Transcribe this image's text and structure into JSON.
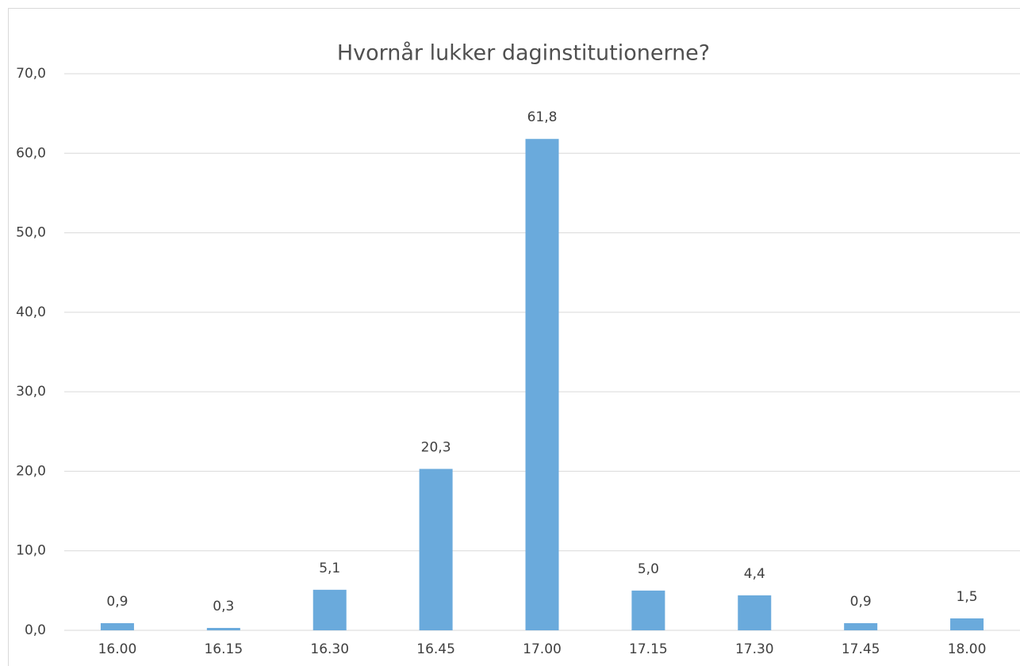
{
  "chart_data": {
    "type": "bar",
    "title": "Hvornår lukker daginstitutionerne?",
    "categories": [
      "16.00",
      "16.15",
      "16.30",
      "16.45",
      "17.00",
      "17.15",
      "17.30",
      "17.45",
      "18.00"
    ],
    "values": [
      0.9,
      0.3,
      5.1,
      20.3,
      61.8,
      5.0,
      4.4,
      0.9,
      1.5
    ],
    "value_labels": [
      "0,9",
      "0,3",
      "5,1",
      "20,3",
      "61,8",
      "5,0",
      "4,4",
      "0,9",
      "1,5"
    ],
    "color": "#6aaadc",
    "ylim": [
      0,
      70
    ],
    "yticks": [
      {
        "value": 0,
        "label": "0,0"
      },
      {
        "value": 10,
        "label": "10,0"
      },
      {
        "value": 20,
        "label": "20,0"
      },
      {
        "value": 30,
        "label": "30,0"
      },
      {
        "value": 40,
        "label": "40,0"
      },
      {
        "value": 50,
        "label": "50,0"
      },
      {
        "value": 60,
        "label": "60,0"
      },
      {
        "value": 70,
        "label": "70,0"
      }
    ],
    "grid": true
  }
}
